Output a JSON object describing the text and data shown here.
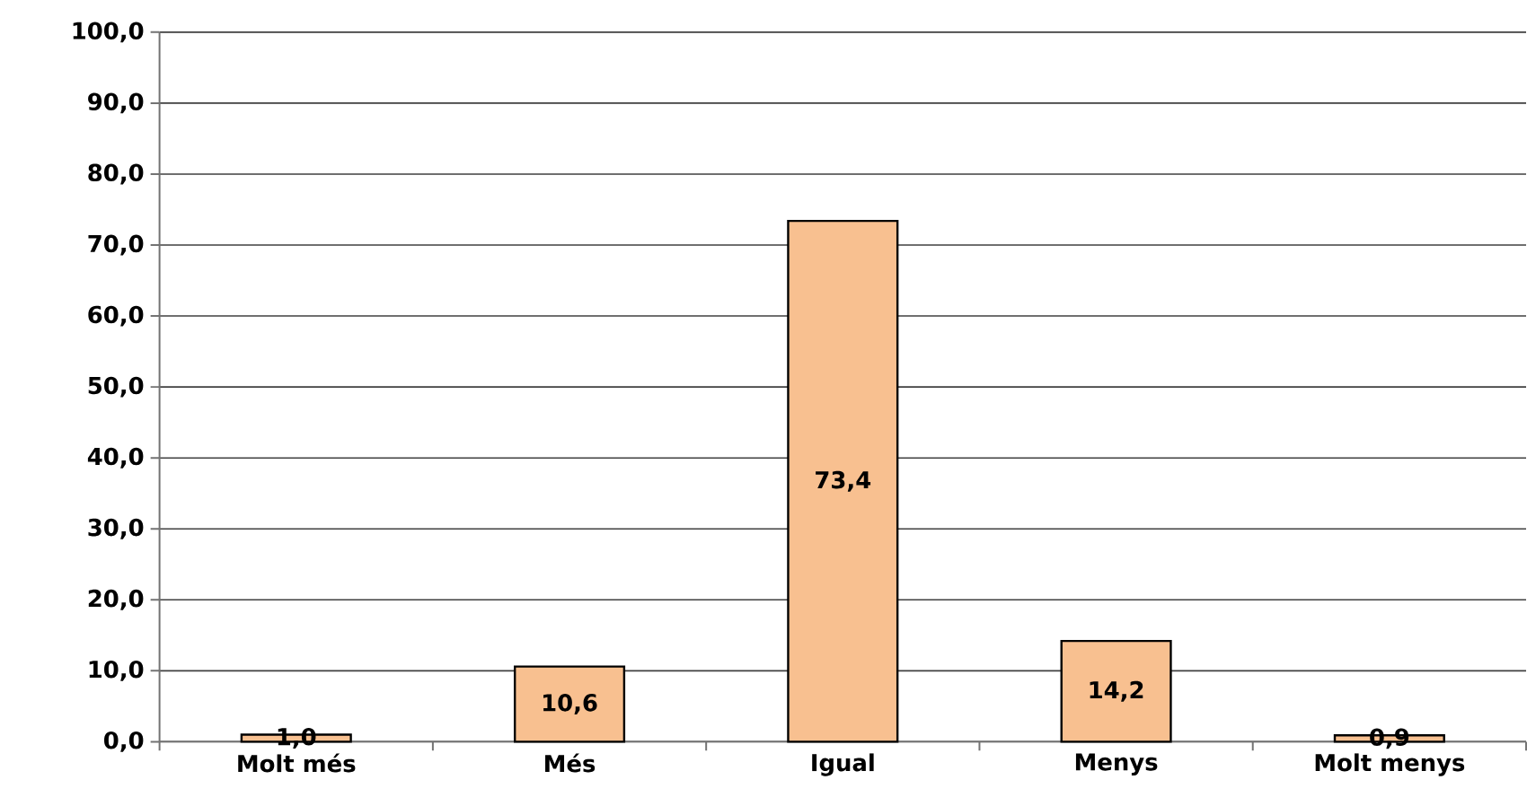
{
  "chart_data": {
    "type": "bar",
    "categories": [
      "Molt més",
      "Més",
      "Igual",
      "Menys",
      "Molt menys"
    ],
    "values": [
      1.0,
      10.6,
      73.4,
      14.2,
      0.9
    ],
    "value_labels": [
      "1,0",
      "10,6",
      "73,4",
      "14,2",
      "0,9"
    ],
    "color": "#f8c090",
    "ylim": [
      0,
      100
    ],
    "yticks": [
      {
        "value": 0,
        "label": "0,0"
      },
      {
        "value": 10,
        "label": "10,0"
      },
      {
        "value": 20,
        "label": "20,0"
      },
      {
        "value": 30,
        "label": "30,0"
      },
      {
        "value": 40,
        "label": "40,0"
      },
      {
        "value": 50,
        "label": "50,0"
      },
      {
        "value": 60,
        "label": "60,0"
      },
      {
        "value": 70,
        "label": "70,0"
      },
      {
        "value": 80,
        "label": "80,0"
      },
      {
        "value": 90,
        "label": "90,0"
      },
      {
        "value": 100,
        "label": "100,0"
      }
    ],
    "grid": "y"
  }
}
